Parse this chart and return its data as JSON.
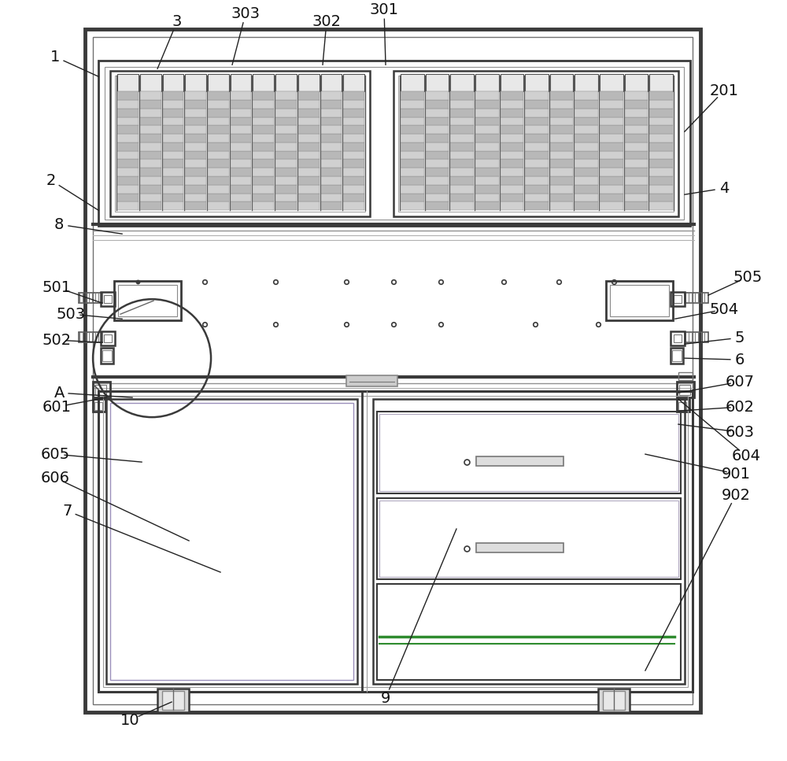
{
  "bg_color": "#ffffff",
  "lc": "#3a3a3a",
  "lc_thin": "#606060",
  "lc_purple": "#9b8fbb",
  "lc_green": "#2e8b2e",
  "fig_width": 10.0,
  "fig_height": 9.67
}
